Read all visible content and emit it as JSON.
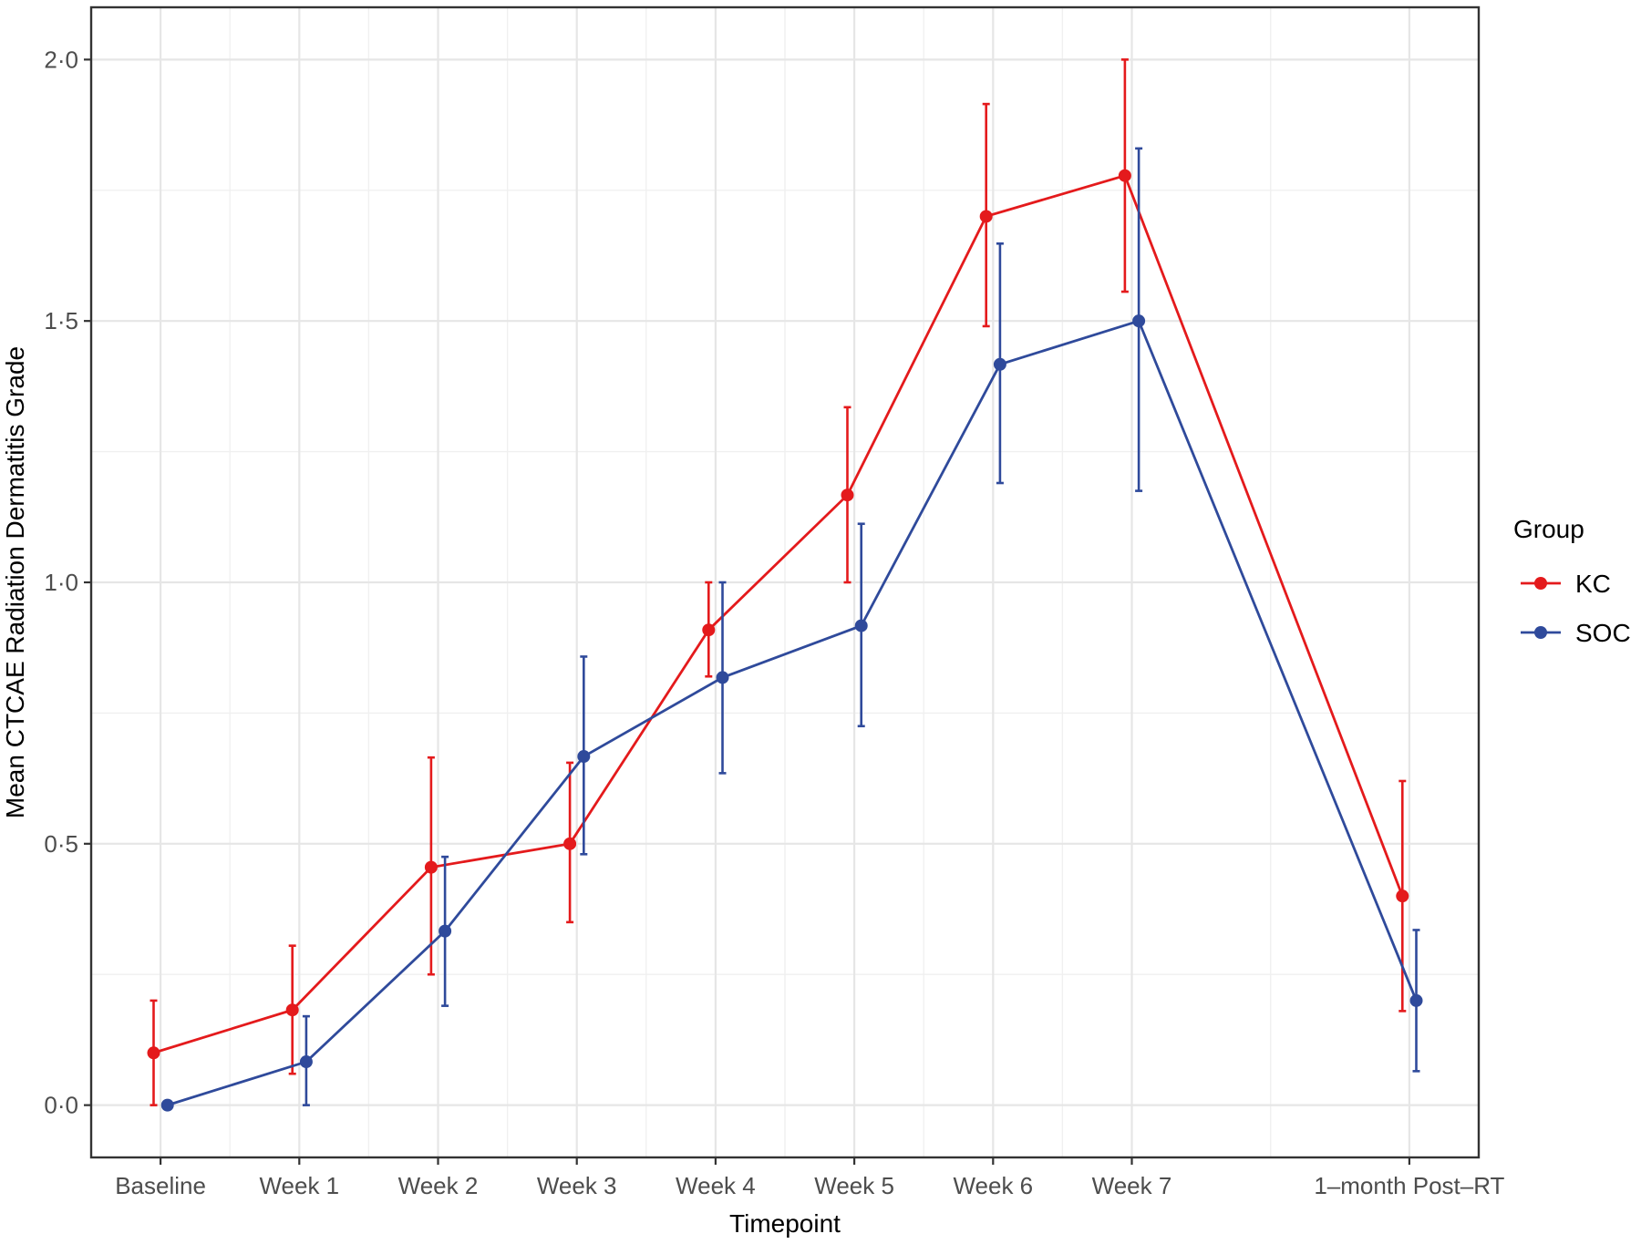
{
  "chart_data": {
    "type": "line",
    "title": "",
    "xlabel": "Timepoint",
    "ylabel": "Mean CTCAE Radiation Dermatitis Grade",
    "categories": [
      "Baseline",
      "Week 1",
      "Week 2",
      "Week 3",
      "Week 4",
      "Week 5",
      "Week 6",
      "Week 7",
      "1–month Post–RT"
    ],
    "x_positions": [
      0,
      1,
      2,
      3,
      4,
      5,
      6,
      7,
      9
    ],
    "xlim": [
      -0.5,
      9.5
    ],
    "ylim": [
      -0.1,
      2.1
    ],
    "yticks": [
      0.0,
      0.5,
      1.0,
      1.5,
      2.0
    ],
    "ytick_labels": [
      "0·0",
      "0·5",
      "1·0",
      "1·5",
      "2·0"
    ],
    "grid": true,
    "legend": {
      "title": "Group",
      "position": "right"
    },
    "series": [
      {
        "name": "KC",
        "color": "#e41a1c",
        "values": [
          0.1,
          0.182,
          0.455,
          0.5,
          0.909,
          1.167,
          1.7,
          1.778,
          0.4
        ],
        "lower": [
          0.0,
          0.06,
          0.25,
          0.35,
          0.82,
          1.0,
          1.49,
          1.556,
          0.18
        ],
        "upper": [
          0.2,
          0.305,
          0.665,
          0.655,
          1.0,
          1.335,
          1.915,
          2.0,
          0.62
        ]
      },
      {
        "name": "SOC",
        "color": "#2f4a9b",
        "values": [
          0.0,
          0.083,
          0.333,
          0.667,
          0.818,
          0.917,
          1.417,
          1.5,
          0.2
        ],
        "lower": [
          0.0,
          0.0,
          0.19,
          0.48,
          0.635,
          0.725,
          1.19,
          1.175,
          0.065
        ],
        "upper": [
          0.0,
          0.17,
          0.475,
          0.858,
          1.0,
          1.112,
          1.648,
          1.83,
          0.335
        ]
      }
    ]
  }
}
